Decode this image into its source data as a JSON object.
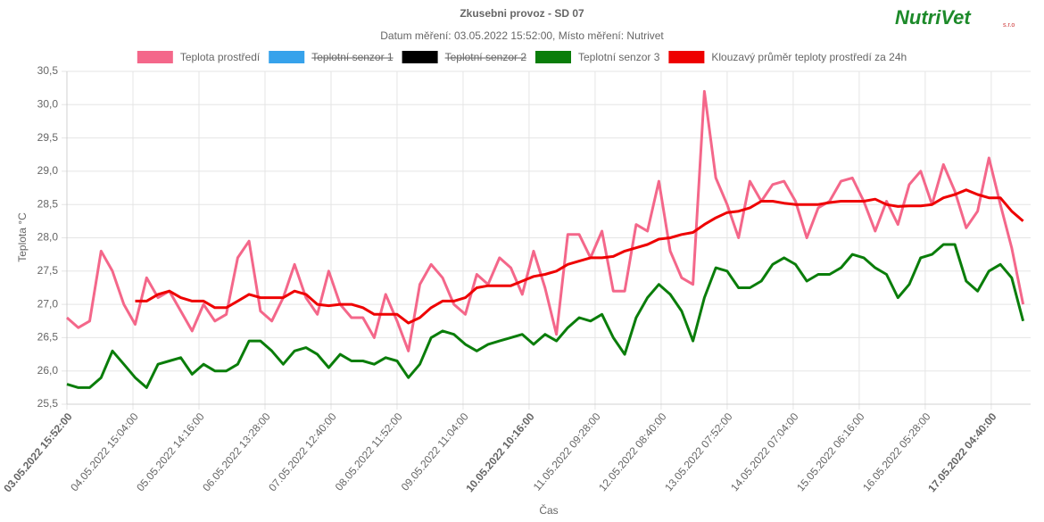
{
  "chart_data": {
    "type": "line",
    "title": "Zkusebni provoz - SD 07",
    "subtitle": "Datum měření: 03.05.2022 15:52:00, Místo měření: Nutrivet",
    "logo": "NutriVet",
    "logo_suffix": "s.r.o",
    "x_label": "Čas",
    "y_label": "Teplota °C",
    "grid": true,
    "xlim": [
      "03.05.2022 15:52:00",
      "17.05.2022 18:30:00"
    ],
    "xticks": [
      "03.05.2022 15:52:00",
      "04.05.2022 15:04:00",
      "05.05.2022 14:16:00",
      "06.05.2022 13:28:00",
      "07.05.2022 12:40:00",
      "08.05.2022 11:52:00",
      "09.05.2022 11:04:00",
      "10.05.2022 10:16:00",
      "11.05.2022 09:28:00",
      "12.05.2022 08:40:00",
      "13.05.2022 07:52:00",
      "14.05.2022 07:04:00",
      "15.05.2022 06:16:00",
      "16.05.2022 05:28:00",
      "17.05.2022 04:40:00"
    ],
    "xticks_bold": [
      true,
      false,
      false,
      false,
      false,
      false,
      false,
      true,
      false,
      false,
      false,
      false,
      false,
      false,
      true
    ],
    "ylim": [
      25.5,
      30.5
    ],
    "yticks": [
      {
        "value": 25.5,
        "label": "25,5"
      },
      {
        "value": 26,
        "label": "26,0"
      },
      {
        "value": 26.5,
        "label": "26,5"
      },
      {
        "value": 27,
        "label": "27,0"
      },
      {
        "value": 27.5,
        "label": "27,5"
      },
      {
        "value": 28,
        "label": "28,0"
      },
      {
        "value": 28.5,
        "label": "28,5"
      },
      {
        "value": 29,
        "label": "29,0"
      },
      {
        "value": 29.5,
        "label": "29,5"
      },
      {
        "value": 30,
        "label": "30,0"
      },
      {
        "value": 30.5,
        "label": "30,5"
      }
    ],
    "x": [
      "03.05.2022 15:52:00",
      "03.05.2022 19:52:00",
      "03.05.2022 23:52:00",
      "04.05.2022 03:52:00",
      "04.05.2022 07:52:00",
      "04.05.2022 11:52:00",
      "04.05.2022 15:52:00",
      "04.05.2022 19:52:00",
      "04.05.2022 23:52:00",
      "05.05.2022 03:52:00",
      "05.05.2022 07:52:00",
      "05.05.2022 11:52:00",
      "05.05.2022 15:52:00",
      "05.05.2022 19:52:00",
      "05.05.2022 23:52:00",
      "06.05.2022 03:52:00",
      "06.05.2022 07:52:00",
      "06.05.2022 11:52:00",
      "06.05.2022 15:52:00",
      "06.05.2022 19:52:00",
      "06.05.2022 23:52:00",
      "07.05.2022 03:52:00",
      "07.05.2022 07:52:00",
      "07.05.2022 11:52:00",
      "07.05.2022 15:52:00",
      "07.05.2022 19:52:00",
      "07.05.2022 23:52:00",
      "08.05.2022 03:52:00",
      "08.05.2022 07:52:00",
      "08.05.2022 11:52:00",
      "08.05.2022 15:52:00",
      "08.05.2022 19:52:00",
      "08.05.2022 23:52:00",
      "09.05.2022 03:52:00",
      "09.05.2022 07:52:00",
      "09.05.2022 11:52:00",
      "09.05.2022 15:52:00",
      "09.05.2022 19:52:00",
      "09.05.2022 23:52:00",
      "10.05.2022 03:52:00",
      "10.05.2022 07:52:00",
      "10.05.2022 11:52:00",
      "10.05.2022 15:52:00",
      "10.05.2022 19:52:00",
      "10.05.2022 23:52:00",
      "11.05.2022 03:52:00",
      "11.05.2022 07:52:00",
      "11.05.2022 11:52:00",
      "11.05.2022 15:52:00",
      "11.05.2022 19:52:00",
      "11.05.2022 23:52:00",
      "12.05.2022 03:52:00",
      "12.05.2022 07:52:00",
      "12.05.2022 11:52:00",
      "12.05.2022 15:52:00",
      "12.05.2022 19:52:00",
      "12.05.2022 23:52:00",
      "13.05.2022 03:52:00",
      "13.05.2022 07:52:00",
      "13.05.2022 11:52:00",
      "13.05.2022 15:52:00",
      "13.05.2022 19:52:00",
      "13.05.2022 23:52:00",
      "14.05.2022 03:52:00",
      "14.05.2022 07:52:00",
      "14.05.2022 11:52:00",
      "14.05.2022 15:52:00",
      "14.05.2022 19:52:00",
      "14.05.2022 23:52:00",
      "15.05.2022 03:52:00",
      "15.05.2022 07:52:00",
      "15.05.2022 11:52:00",
      "15.05.2022 15:52:00",
      "15.05.2022 19:52:00",
      "15.05.2022 23:52:00",
      "16.05.2022 03:52:00",
      "16.05.2022 07:52:00",
      "16.05.2022 11:52:00",
      "16.05.2022 15:52:00",
      "16.05.2022 19:52:00",
      "16.05.2022 23:52:00",
      "17.05.2022 03:52:00",
      "17.05.2022 07:52:00",
      "17.05.2022 11:52:00",
      "17.05.2022 15:52:00"
    ],
    "series": [
      {
        "name": "Teplota prostředí",
        "color": "#f4678a",
        "values": [
          26.8,
          26.65,
          26.75,
          27.8,
          27.5,
          27.0,
          26.7,
          27.4,
          27.1,
          27.2,
          26.9,
          26.6,
          27.0,
          26.75,
          26.85,
          27.7,
          27.95,
          26.9,
          26.75,
          27.1,
          27.6,
          27.1,
          26.85,
          27.5,
          27.0,
          26.8,
          26.8,
          26.5,
          27.15,
          26.75,
          26.3,
          27.3,
          27.6,
          27.4,
          27.0,
          26.85,
          27.45,
          27.3,
          27.7,
          27.55,
          27.15,
          27.8,
          27.25,
          26.55,
          28.05,
          28.05,
          27.7,
          28.1,
          27.2,
          27.2,
          28.2,
          28.1,
          28.85,
          27.8,
          27.4,
          27.3,
          30.2,
          28.9,
          28.5,
          28.0,
          28.85,
          28.55,
          28.8,
          28.85,
          28.55,
          28.0,
          28.45,
          28.55,
          28.85,
          28.9,
          28.55,
          28.1,
          28.55,
          28.2,
          28.8,
          29.0,
          28.5,
          29.1,
          28.7,
          28.15,
          28.4,
          29.2,
          28.5,
          27.85,
          27.0
        ]
      },
      {
        "name": "Teplotní senzor 1",
        "color": "#36a2eb",
        "hidden": true
      },
      {
        "name": "Teplotní senzor 2",
        "color": "#000000",
        "hidden": true
      },
      {
        "name": "Teplotní senzor 3",
        "color": "#0a7d0a",
        "values": [
          25.8,
          25.75,
          25.75,
          25.9,
          26.3,
          26.1,
          25.9,
          25.75,
          26.1,
          26.15,
          26.2,
          25.95,
          26.1,
          26.0,
          26.0,
          26.1,
          26.45,
          26.45,
          26.3,
          26.1,
          26.3,
          26.35,
          26.25,
          26.05,
          26.25,
          26.15,
          26.15,
          26.1,
          26.2,
          26.15,
          25.9,
          26.1,
          26.5,
          26.6,
          26.55,
          26.4,
          26.3,
          26.4,
          26.45,
          26.5,
          26.55,
          26.4,
          26.55,
          26.45,
          26.65,
          26.8,
          26.75,
          26.85,
          26.5,
          26.25,
          26.8,
          27.1,
          27.3,
          27.15,
          26.9,
          26.45,
          27.1,
          27.55,
          27.5,
          27.25,
          27.25,
          27.35,
          27.6,
          27.7,
          27.6,
          27.35,
          27.45,
          27.45,
          27.55,
          27.75,
          27.7,
          27.55,
          27.45,
          27.1,
          27.3,
          27.7,
          27.75,
          27.9,
          27.9,
          27.35,
          27.2,
          27.5,
          27.6,
          27.4,
          26.75
        ]
      },
      {
        "name": "Klouzavý průměr teploty prostředí za 24h",
        "color": "#ee0000",
        "values": [
          null,
          null,
          null,
          null,
          null,
          null,
          27.05,
          27.05,
          27.15,
          27.2,
          27.1,
          27.05,
          27.05,
          26.95,
          26.95,
          27.05,
          27.15,
          27.1,
          27.1,
          27.1,
          27.2,
          27.15,
          27.0,
          26.98,
          27.0,
          27.0,
          26.95,
          26.85,
          26.85,
          26.85,
          26.72,
          26.8,
          26.95,
          27.05,
          27.05,
          27.1,
          27.25,
          27.28,
          27.28,
          27.28,
          27.35,
          27.42,
          27.45,
          27.5,
          27.6,
          27.65,
          27.7,
          27.7,
          27.72,
          27.8,
          27.85,
          27.9,
          27.98,
          28.0,
          28.05,
          28.08,
          28.2,
          28.3,
          28.38,
          28.4,
          28.45,
          28.55,
          28.55,
          28.52,
          28.5,
          28.5,
          28.5,
          28.53,
          28.55,
          28.55,
          28.55,
          28.58,
          28.5,
          28.47,
          28.48,
          28.48,
          28.5,
          28.6,
          28.65,
          28.72,
          28.65,
          28.6,
          28.6,
          28.4,
          28.25
        ]
      }
    ]
  }
}
